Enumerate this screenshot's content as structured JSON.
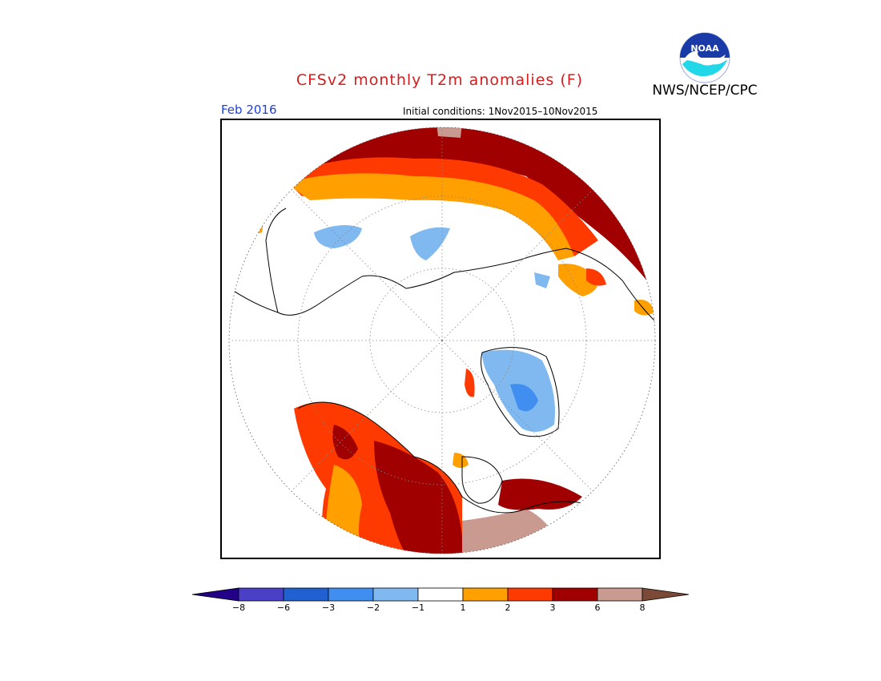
{
  "header": {
    "title": "CFSv2 monthly T2m anomalies (F)",
    "org": "NWS/NCEP/CPC",
    "logo_text": "NOAA",
    "valid_month": "Feb 2016",
    "initial_conditions": "Initial conditions: 1Nov2015–10Nov2015"
  },
  "legend": {
    "tick_labels": [
      "−8",
      "−6",
      "−3",
      "−2",
      "−1",
      "1",
      "2",
      "3",
      "6",
      "8"
    ],
    "colors": {
      "lt_neg8": "#220088",
      "neg8_neg6": "#4a40c8",
      "neg6_neg3": "#2060d0",
      "neg3_neg2": "#3f8ef0",
      "neg2_neg1": "#80b8f0",
      "neg1_1": "#ffffff",
      "p1_2": "#ffa000",
      "p2_3": "#ff3a00",
      "p3_6": "#a00000",
      "p6_8": "#c89a90",
      "gt_8": "#7a4a36"
    }
  },
  "map": {
    "projection": "north polar stereographic",
    "grid_lines": "dotted"
  }
}
